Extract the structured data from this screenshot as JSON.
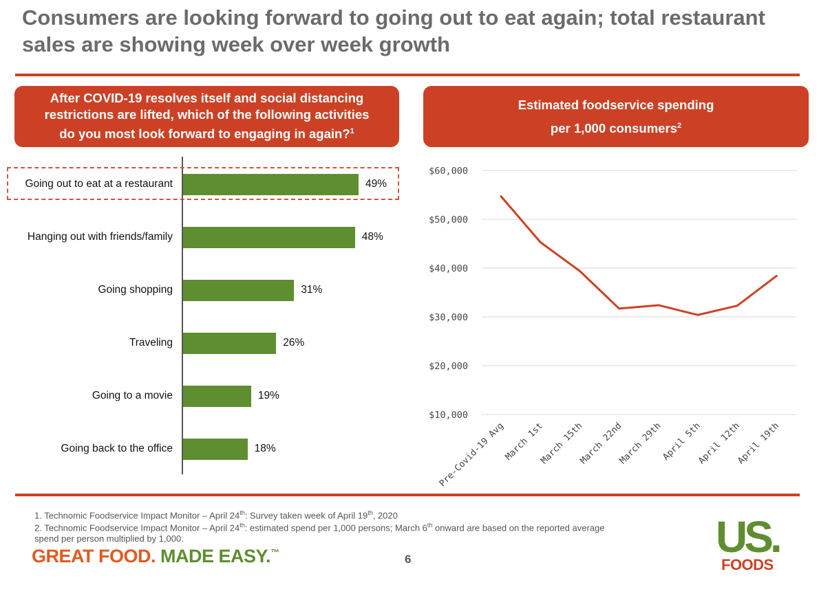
{
  "header": {
    "title": "Consumers are looking forward to going out to eat again; total restaurant sales are showing week over week growth"
  },
  "left_panel": {
    "question_line1": "After COVID-19 resolves itself and social distancing",
    "question_line2": "restrictions are lifted, which of the following activities",
    "question_line3": "do you most look forward to engaging in again?",
    "question_sup": "1"
  },
  "right_panel": {
    "title_line1": "Estimated foodservice spending",
    "title_line2": "per 1,000 consumers",
    "title_sup": "2"
  },
  "chart_data": [
    {
      "type": "bar",
      "orientation": "horizontal",
      "categories": [
        "Going out to eat at a restaurant",
        "Hanging out with friends/family",
        "Going shopping",
        "Traveling",
        "Going to a movie",
        "Going back to the office"
      ],
      "values": [
        49,
        48,
        31,
        26,
        19,
        18
      ],
      "value_labels": [
        "49%",
        "48%",
        "31%",
        "26%",
        "19%",
        "18%"
      ],
      "unit": "%",
      "highlighted_category": "Going out to eat at a restaurant",
      "colors": {
        "bar": "#5e8e2f",
        "highlight": "#d0533a"
      }
    },
    {
      "type": "line",
      "categories": [
        "Pre-Covid-19 Avg",
        "March 1st",
        "March 15th",
        "March 22nd",
        "March 29th",
        "April 5th",
        "April 12th",
        "April 19th"
      ],
      "values": [
        54700,
        45300,
        39400,
        31700,
        32400,
        30400,
        32300,
        38400
      ],
      "ylim": [
        10000,
        60000
      ],
      "yticks": [
        10000,
        20000,
        30000,
        40000,
        50000,
        60000
      ],
      "ytick_labels": [
        "$10,000",
        "$20,000",
        "$30,000",
        "$40,000",
        "$50,000",
        "$60,000"
      ],
      "grid": true,
      "colors": {
        "line": "#cc4125",
        "grid": "#d9d9d9"
      }
    }
  ],
  "footnotes": {
    "note1_a": "1. Technomic Foodservice Impact Monitor – April 24",
    "note1_sup1": "th",
    "note1_b": ": Survey taken week of April 19",
    "note1_sup2": "th",
    "note1_c": ", 2020",
    "note2_a": "2. Technomic Foodservice Impact Monitor – April 24",
    "note2_sup1": "th",
    "note2_b": ": estimated spend per 1,000 persons; March 6",
    "note2_sup2": "th",
    "note2_c": " onward are based on the reported average",
    "note2_d": "spend per person multiplied by 1,000."
  },
  "footer": {
    "tagline_part1": "GREAT FOOD.",
    "tagline_part2": "MADE EASY.",
    "tagline_tm": "™",
    "page_number": "6",
    "logo_top": "US.",
    "logo_bottom": "FOODS",
    "tagline_color1": "#e05a1f",
    "tagline_color2": "#5e8e2f"
  }
}
